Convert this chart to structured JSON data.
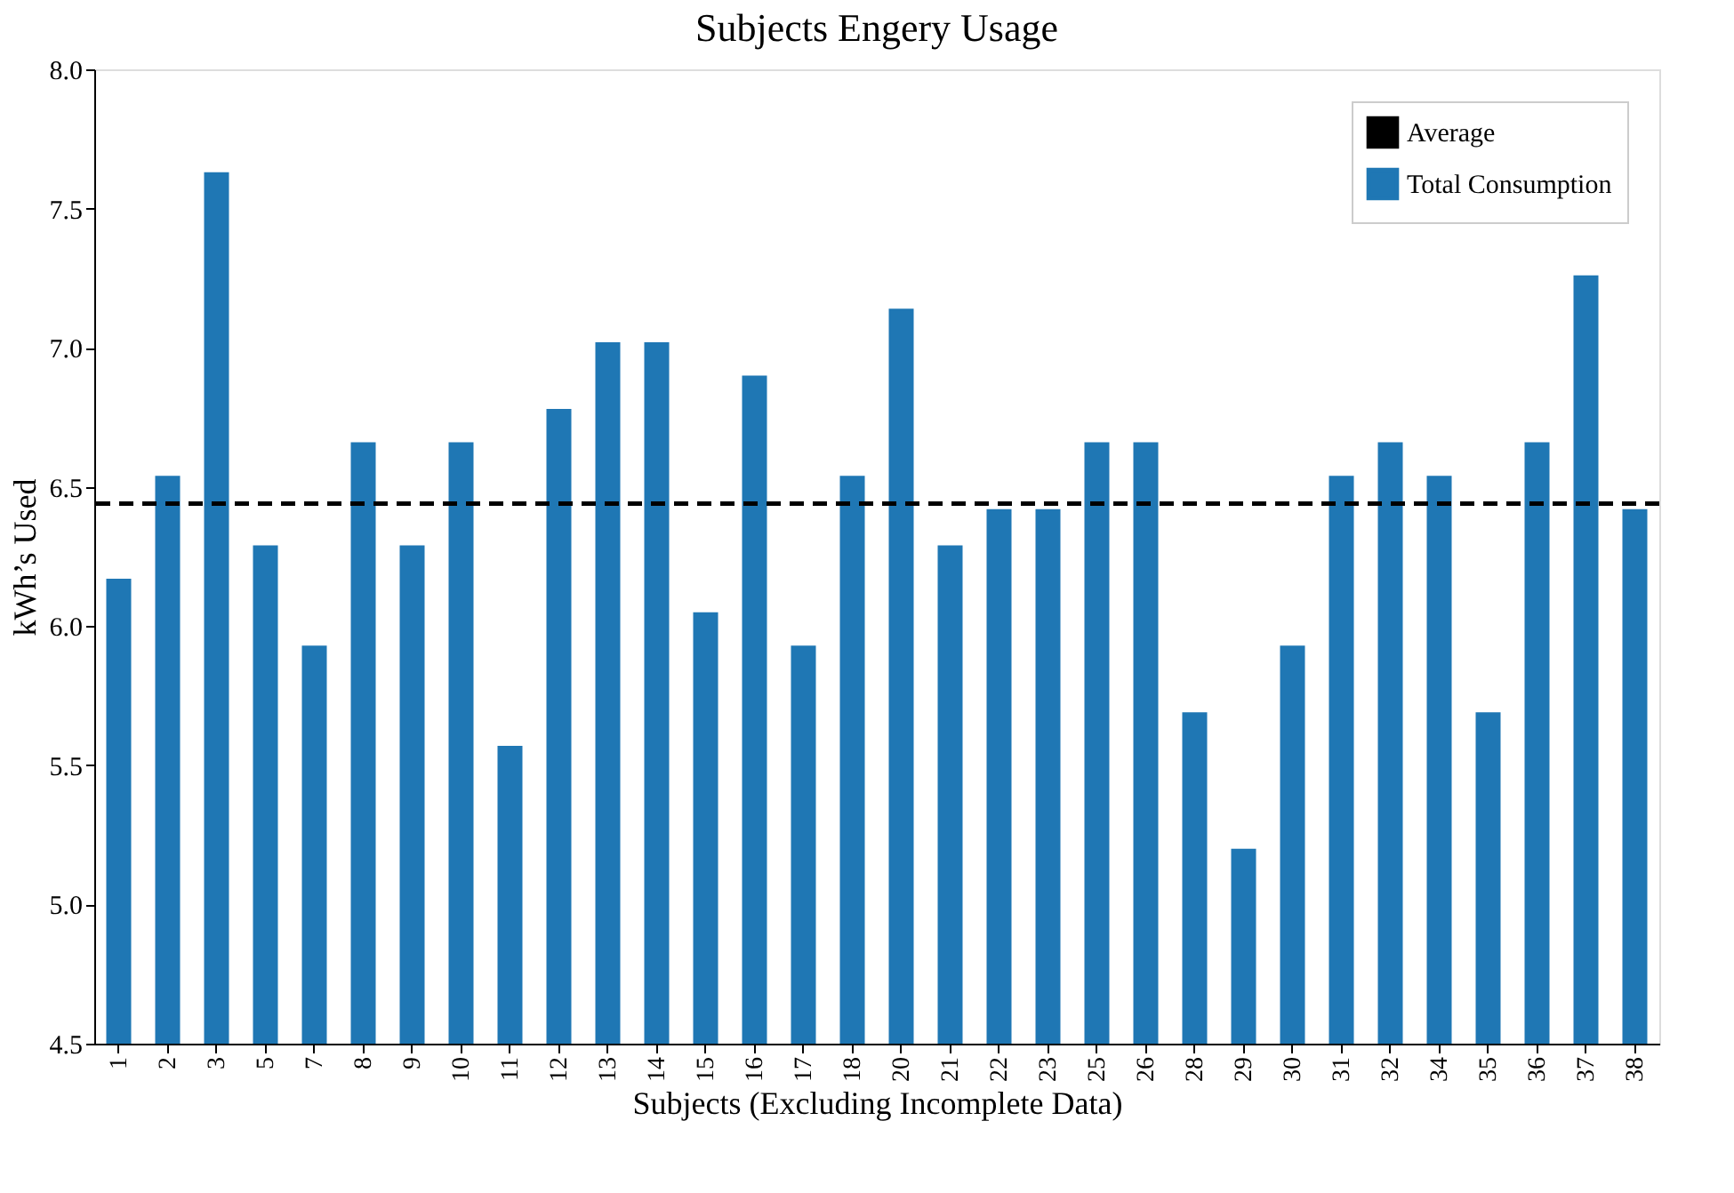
{
  "chart_data": {
    "type": "bar",
    "title": "Subjects Engery Usage",
    "xlabel": "Subjects (Excluding Incomplete Data)",
    "ylabel": "kWh’s Used",
    "categories": [
      "1",
      "2",
      "3",
      "5",
      "7",
      "8",
      "9",
      "10",
      "11",
      "12",
      "13",
      "14",
      "15",
      "16",
      "17",
      "18",
      "20",
      "21",
      "22",
      "23",
      "25",
      "26",
      "28",
      "29",
      "30",
      "31",
      "32",
      "34",
      "35",
      "36",
      "37",
      "38"
    ],
    "series": [
      {
        "name": "Total Consumption",
        "color": "#1f77b4",
        "values": [
          6.17,
          6.54,
          7.63,
          6.29,
          5.93,
          6.66,
          6.29,
          6.66,
          5.57,
          6.78,
          7.02,
          7.02,
          6.05,
          6.9,
          5.93,
          6.54,
          7.14,
          6.29,
          6.42,
          6.42,
          6.66,
          6.66,
          5.69,
          5.2,
          5.93,
          6.54,
          6.66,
          6.54,
          5.69,
          6.66,
          7.26,
          6.42
        ]
      }
    ],
    "ylim": [
      4.5,
      8.0
    ],
    "yticks": [
      {
        "value": 4.5,
        "label": "4.5"
      },
      {
        "value": 5.0,
        "label": "5.0"
      },
      {
        "value": 5.5,
        "label": "5.5"
      },
      {
        "value": 6.0,
        "label": "6.0"
      },
      {
        "value": 6.5,
        "label": "6.5"
      },
      {
        "value": 7.0,
        "label": "7.0"
      },
      {
        "value": 7.5,
        "label": "7.5"
      },
      {
        "value": 8.0,
        "label": "8.0"
      }
    ],
    "ref_lines": [
      {
        "axis": "y",
        "value": 6.44,
        "label": "Average",
        "color": "#000000",
        "line_style": "dashed"
      }
    ],
    "grid": false,
    "legend": "top right"
  }
}
